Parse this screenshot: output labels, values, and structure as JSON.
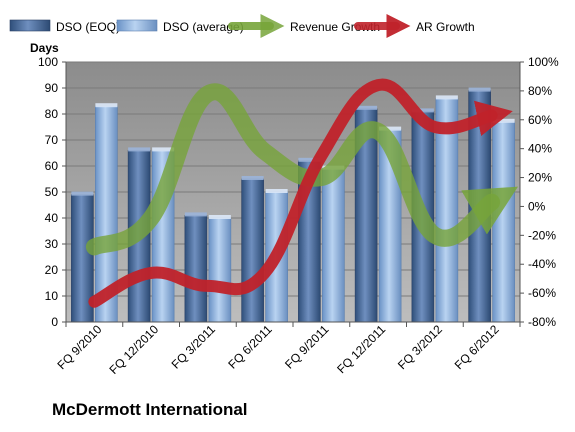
{
  "chart_data": {
    "type": "bar",
    "title": "McDermott International",
    "ylabel": "Days",
    "ylim": [
      0,
      100
    ],
    "y2lim": [
      -80,
      100
    ],
    "categories": [
      "FQ 9/2010",
      "FQ 12/2010",
      "FQ 3/2011",
      "FQ 6/2011",
      "FQ 9/2011",
      "FQ 12/2011",
      "FQ 3/2012",
      "FQ 6/2012"
    ],
    "series": [
      {
        "name": "DSO (EOQ)",
        "type": "bar",
        "axis": "left",
        "color": "#4f6f9f",
        "values": [
          49,
          66,
          41,
          55,
          62,
          82,
          81,
          89
        ]
      },
      {
        "name": "DSO (average)",
        "type": "bar",
        "axis": "right-none",
        "color": "#8fb4e3",
        "values": [
          83,
          66,
          40,
          50,
          59,
          74,
          86,
          77
        ]
      },
      {
        "name": "Revenue Growth",
        "type": "line",
        "axis": "right",
        "unit": "%",
        "color": "#77a43a",
        "values": [
          -28,
          -8,
          78,
          38,
          20,
          52,
          -20,
          3
        ]
      },
      {
        "name": "AR Growth",
        "type": "line",
        "axis": "right",
        "unit": "%",
        "color": "#c0222a",
        "values": [
          -66,
          -46,
          -55,
          -46,
          35,
          84,
          55,
          63
        ]
      }
    ],
    "y_ticks": [
      "0",
      "10",
      "20",
      "30",
      "40",
      "50",
      "60",
      "70",
      "80",
      "90",
      "100"
    ],
    "y2_ticks": [
      "-80%",
      "-60%",
      "-40%",
      "-20%",
      "0%",
      "20%",
      "40%",
      "60%",
      "80%",
      "100%"
    ],
    "legend_position": "top",
    "grid": true,
    "background_color": "#aeaeae"
  }
}
